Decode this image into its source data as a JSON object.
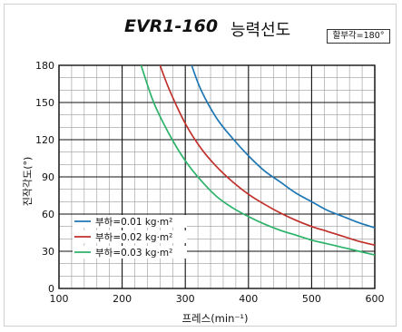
{
  "title": {
    "model": "EVR1-160",
    "text": "능력선도"
  },
  "indexing_angle_label": "할부각=180°",
  "chart_data": {
    "type": "line",
    "xlabel": "프레스(min⁻¹)",
    "ylabel": "진작각도(°)",
    "xlim": [
      100,
      600
    ],
    "ylim": [
      0,
      180
    ],
    "x_ticks": [
      100,
      200,
      300,
      400,
      500,
      600
    ],
    "y_ticks": [
      0,
      30,
      60,
      90,
      120,
      150,
      180
    ],
    "grid": true,
    "legend_position": "bottom-left",
    "series": [
      {
        "name": "부하=0.01 kg·m²",
        "color": "#1f77b4",
        "x": [
          310,
          325,
          350,
          375,
          400,
          425,
          450,
          475,
          500,
          525,
          550,
          575,
          600
        ],
        "y": [
          180,
          160,
          137,
          121,
          107,
          95,
          86,
          77,
          70,
          63,
          58,
          53,
          49
        ]
      },
      {
        "name": "부하=0.02 kg·m²",
        "color": "#c0302b",
        "x": [
          260,
          275,
          300,
          325,
          350,
          375,
          400,
          425,
          450,
          475,
          500,
          525,
          550,
          575,
          600
        ],
        "y": [
          180,
          160,
          133,
          113,
          98,
          86,
          76,
          68,
          61,
          55,
          50,
          46,
          42,
          38,
          35
        ]
      },
      {
        "name": "부하=0.03 kg·m²",
        "color": "#2db36a",
        "x": [
          230,
          250,
          275,
          300,
          325,
          350,
          375,
          400,
          425,
          450,
          475,
          500,
          525,
          550,
          575,
          600
        ],
        "y": [
          180,
          150,
          124,
          103,
          87,
          74,
          65,
          58,
          52,
          47,
          43,
          39,
          36,
          33,
          30,
          27
        ]
      }
    ]
  }
}
